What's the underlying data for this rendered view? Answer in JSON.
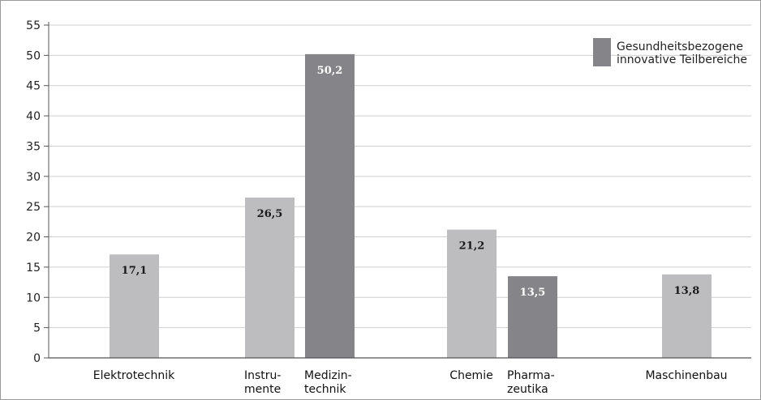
{
  "chart_data": {
    "type": "bar",
    "title": "",
    "xlabel": "",
    "ylabel": "",
    "ylim": [
      0,
      55
    ],
    "yticks": [
      "0",
      "5",
      "10",
      "15",
      "20",
      "25",
      "30",
      "35",
      "40",
      "45",
      "50",
      "55"
    ],
    "grid": true,
    "legend_position": "top-right",
    "legend": [
      {
        "label_lines": [
          "Gesundheitsbezogene",
          "innovative Teilbereiche"
        ],
        "color": "#858589"
      }
    ],
    "colors": {
      "base": "#bdbdbf",
      "health": "#858589",
      "label_on_base": "#1a1a1a",
      "label_on_health": "#ffffff"
    },
    "bars": [
      {
        "label_lines": [
          "Elektrotechnik"
        ],
        "value": 17.1,
        "value_label": "17,1",
        "group": "base"
      },
      {
        "label_lines": [
          "Instru-",
          "mente"
        ],
        "value": 26.5,
        "value_label": "26,5",
        "group": "base"
      },
      {
        "label_lines": [
          "Medizin-",
          "technik"
        ],
        "value": 50.2,
        "value_label": "50,2",
        "group": "health"
      },
      {
        "label_lines": [
          "Chemie"
        ],
        "value": 21.2,
        "value_label": "21,2",
        "group": "base"
      },
      {
        "label_lines": [
          "Pharma-",
          "zeutika"
        ],
        "value": 13.5,
        "value_label": "13,5",
        "group": "health"
      },
      {
        "label_lines": [
          "Maschinenbau"
        ],
        "value": 13.8,
        "value_label": "13,8",
        "group": "base"
      }
    ]
  }
}
